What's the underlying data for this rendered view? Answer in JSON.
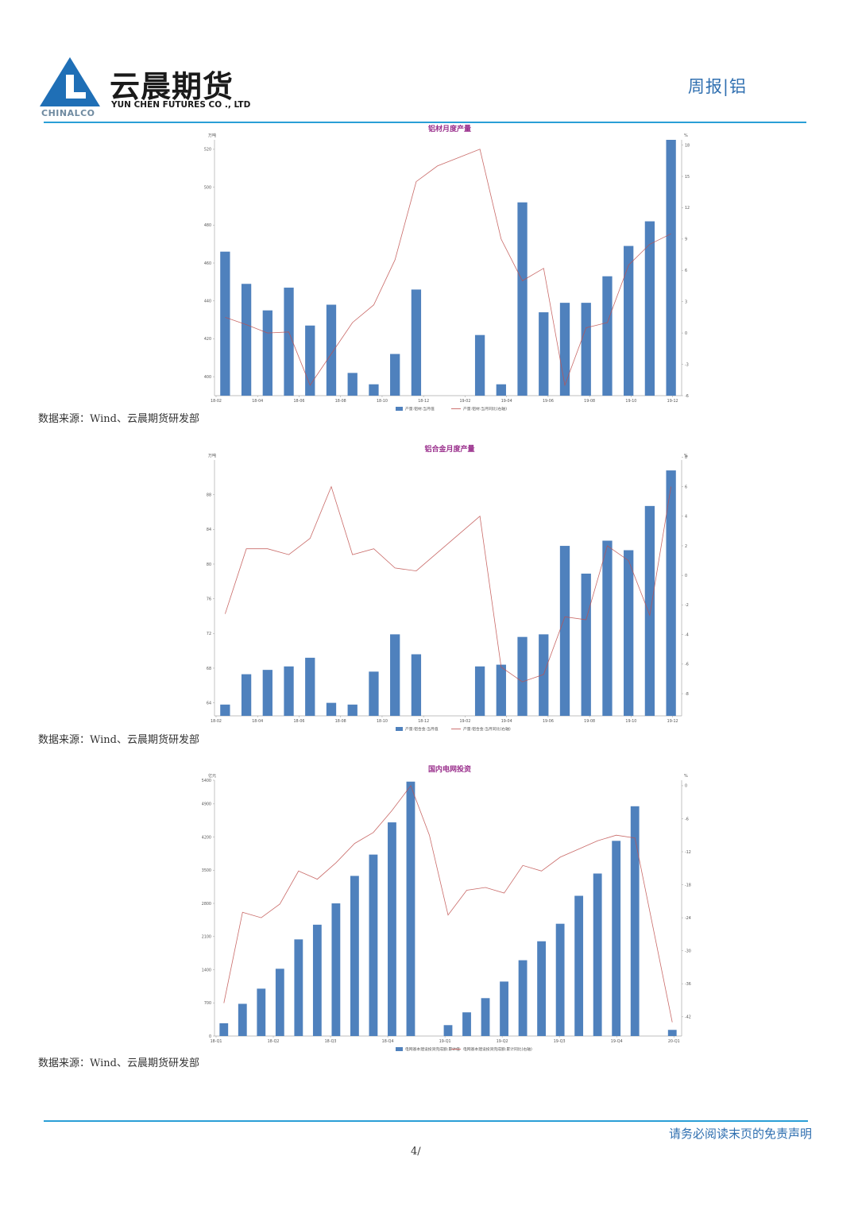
{
  "header": {
    "company_cn": "云晨期货",
    "company_en": "YUN CHEN FUTURES CO ., LTD",
    "brand": "CHINALCO",
    "report_title": "周报|铝",
    "brand_colors": {
      "line": "#2a9fd6",
      "title": "#2f6fb0",
      "logo_blue": "#1f6fb6"
    }
  },
  "footer": {
    "disclaimer": "请务必阅读末页的免责声明",
    "page_number": "4/"
  },
  "chart_data": [
    {
      "type": "bar",
      "title": "铝材月度产量",
      "y_unit": "万吨",
      "y2_unit": "%",
      "categories": [
        "18-03",
        "18-04",
        "18-05",
        "18-06",
        "18-07",
        "18-08",
        "18-09",
        "18-10",
        "18-11",
        "18-12",
        "19-01",
        "19-02",
        "19-03",
        "19-04",
        "19-05",
        "19-06",
        "19-07",
        "19-08",
        "19-09",
        "19-10",
        "19-11",
        "19-12"
      ],
      "x_ticks": [
        "18-02",
        "18-04",
        "18-06",
        "18-08",
        "18-10",
        "18-12",
        "19-02",
        "19-04",
        "19-06",
        "19-08",
        "19-10",
        "19-12"
      ],
      "y_ticks": [
        400,
        420,
        440,
        460,
        480,
        500,
        520
      ],
      "y2_ticks": [
        -6,
        -3,
        0,
        3,
        6,
        9,
        12,
        15,
        18
      ],
      "ylim": [
        390,
        525
      ],
      "y2lim": [
        -6,
        18.5
      ],
      "series": [
        {
          "name": "产量:铝材:当月值",
          "kind": "bar",
          "color": "#4f81bd",
          "values": [
            466,
            449,
            435,
            447,
            427,
            438,
            402,
            396,
            412,
            446,
            null,
            null,
            422,
            396,
            492,
            434,
            439,
            439,
            453,
            469,
            482,
            525
          ]
        },
        {
          "name": "产量:铝材:当月同比(右轴)",
          "kind": "line",
          "color": "#c0504d",
          "values": [
            1.5,
            0.8,
            0,
            0.1,
            -5,
            -2,
            1,
            2.7,
            7,
            14.5,
            16,
            null,
            17.6,
            9,
            5,
            6.2,
            -5,
            0.5,
            1,
            6.5,
            8.5,
            9.5
          ]
        }
      ],
      "source": "数据来源：Wind、云晨期货研发部"
    },
    {
      "type": "bar",
      "title": "铝合金月度产量",
      "y_unit": "万吨",
      "y2_unit": "%",
      "categories": [
        "18-03",
        "18-04",
        "18-05",
        "18-06",
        "18-07",
        "18-08",
        "18-09",
        "18-10",
        "18-11",
        "18-12",
        "19-01",
        "19-02",
        "19-03",
        "19-04",
        "19-05",
        "19-06",
        "19-07",
        "19-08",
        "19-09",
        "19-10",
        "19-11",
        "19-12"
      ],
      "x_ticks": [
        "18-02",
        "18-04",
        "18-06",
        "18-08",
        "18-10",
        "18-12",
        "19-02",
        "19-04",
        "19-06",
        "19-08",
        "19-10",
        "19-12"
      ],
      "y_ticks": [
        64,
        68,
        72,
        76,
        80,
        84,
        88
      ],
      "y2_ticks": [
        -8,
        -6,
        -4,
        -2,
        0,
        2,
        4,
        6,
        8
      ],
      "ylim": [
        62.5,
        92
      ],
      "y2lim": [
        -9.5,
        7.8
      ],
      "series": [
        {
          "name": "产量:铝合金:当月值",
          "kind": "bar",
          "color": "#4f81bd",
          "values": [
            63.8,
            67.3,
            67.8,
            68.2,
            69.2,
            64,
            63.8,
            67.6,
            71.9,
            69.6,
            null,
            null,
            68.2,
            68.4,
            71.6,
            71.9,
            82.1,
            78.9,
            82.7,
            81.6,
            86.7,
            90.8
          ]
        },
        {
          "name": "产量:铝合金:当月同比(右轴)",
          "kind": "line",
          "color": "#c0504d",
          "values": [
            -2.6,
            1.8,
            1.8,
            1.4,
            2.5,
            6,
            1.4,
            1.8,
            0.5,
            0.3,
            null,
            null,
            4,
            -6.2,
            -7.2,
            -6.7,
            -2.8,
            -3,
            2,
            1,
            -2.7,
            6
          ]
        }
      ],
      "source": "数据来源：Wind、云晨期货研发部"
    },
    {
      "type": "bar",
      "title": "国内电网投资",
      "y_unit": "亿元",
      "y2_unit": "%",
      "categories": [
        "18-02",
        "18-03",
        "18-04",
        "18-05",
        "18-06",
        "18-07",
        "18-08",
        "18-09",
        "18-10",
        "18-11",
        "18-12",
        "19-01",
        "19-02",
        "19-03",
        "19-04",
        "19-05",
        "19-06",
        "19-07",
        "19-08",
        "19-09",
        "19-10",
        "19-11",
        "19-12",
        "20-01",
        "20-02"
      ],
      "x_ticks": [
        "18-Q1",
        "18-Q2",
        "18-Q3",
        "18-Q4",
        "19-Q1",
        "19-Q2",
        "19-Q3",
        "19-Q4",
        "20-Q1"
      ],
      "y_ticks": [
        0,
        700,
        1400,
        2100,
        2800,
        3500,
        4200,
        4900,
        5400
      ],
      "y2_ticks": [
        -42,
        -36,
        -30,
        -24,
        -18,
        -12,
        -6,
        0
      ],
      "ylim": [
        0,
        5400
      ],
      "y2lim": [
        -45.5,
        1
      ],
      "series": [
        {
          "name": "电网基本建设投资完成额:累计值",
          "kind": "bar",
          "color": "#4f81bd",
          "values": [
            270,
            680,
            1000,
            1420,
            2040,
            2350,
            2800,
            3380,
            3830,
            4510,
            5370,
            null,
            230,
            500,
            800,
            1150,
            1600,
            2000,
            2370,
            2960,
            3430,
            4120,
            4850,
            null,
            130
          ]
        },
        {
          "name": "电网基本建设投资完成额:累计同比(右轴)",
          "kind": "line",
          "color": "#c0504d",
          "values": [
            -39.5,
            -23,
            -24,
            -21.5,
            -15.5,
            -17,
            -14,
            -10.5,
            -8.5,
            -4.5,
            0,
            -9,
            -23.5,
            -19,
            -18.5,
            -19.5,
            -14.5,
            -15.5,
            -13,
            -11.5,
            -10,
            -9,
            -9.5,
            null,
            -43
          ]
        }
      ],
      "source": "数据来源：Wind、云晨期货研发部"
    }
  ]
}
